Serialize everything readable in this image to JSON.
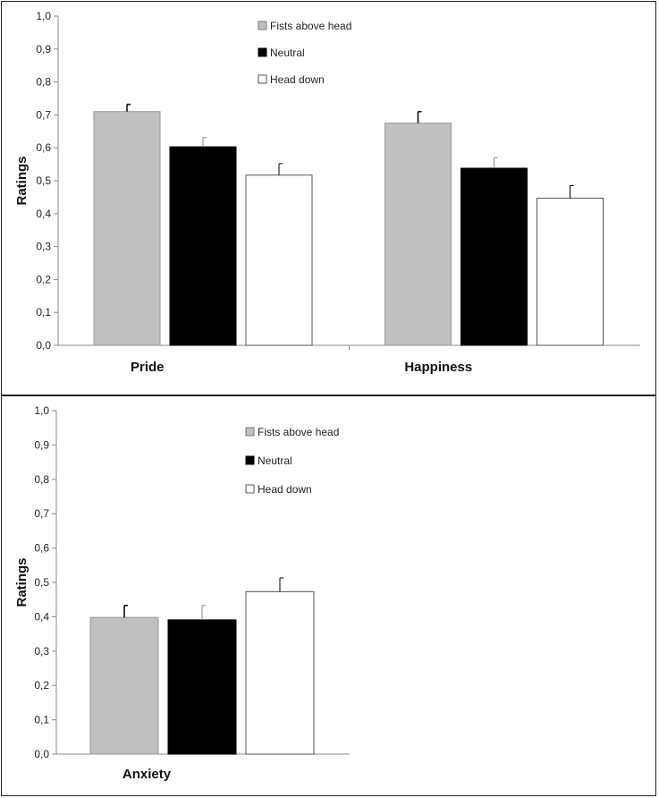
{
  "chart_data": [
    {
      "type": "bar",
      "categories": [
        "Pride",
        "Happiness"
      ],
      "ylabel": "Ratings",
      "ylim": [
        0,
        1
      ],
      "yticks": [
        "0,0",
        "0,1",
        "0,2",
        "0,3",
        "0,4",
        "0,5",
        "0,6",
        "0,7",
        "0,8",
        "0,9",
        "1,0"
      ],
      "grid": false,
      "legend_position": "top-center",
      "series": [
        {
          "name": "Fists above head",
          "color": "#c0c0c0",
          "values": [
            0.71,
            0.675
          ],
          "errors": [
            0.022,
            0.035
          ]
        },
        {
          "name": "Neutral",
          "color": "#000000",
          "values": [
            0.603,
            0.538
          ],
          "errors": [
            0.028,
            0.032
          ]
        },
        {
          "name": "Head down",
          "color": "#ffffff",
          "values": [
            0.517,
            0.447
          ],
          "errors": [
            0.035,
            0.038
          ]
        }
      ]
    },
    {
      "type": "bar",
      "categories": [
        "Anxiety"
      ],
      "ylabel": "Ratings",
      "ylim": [
        0,
        1
      ],
      "yticks": [
        "0,0",
        "0,1",
        "0,2",
        "0,3",
        "0,4",
        "0,5",
        "0,6",
        "0,7",
        "0,8",
        "0,9",
        "1,0"
      ],
      "grid": false,
      "legend_position": "top-center",
      "series": [
        {
          "name": "Fists above head",
          "color": "#c0c0c0",
          "values": [
            0.398
          ],
          "errors": [
            0.035
          ]
        },
        {
          "name": "Neutral",
          "color": "#000000",
          "values": [
            0.391
          ],
          "errors": [
            0.042
          ]
        },
        {
          "name": "Head down",
          "color": "#ffffff",
          "values": [
            0.473
          ],
          "errors": [
            0.04
          ]
        }
      ]
    }
  ]
}
